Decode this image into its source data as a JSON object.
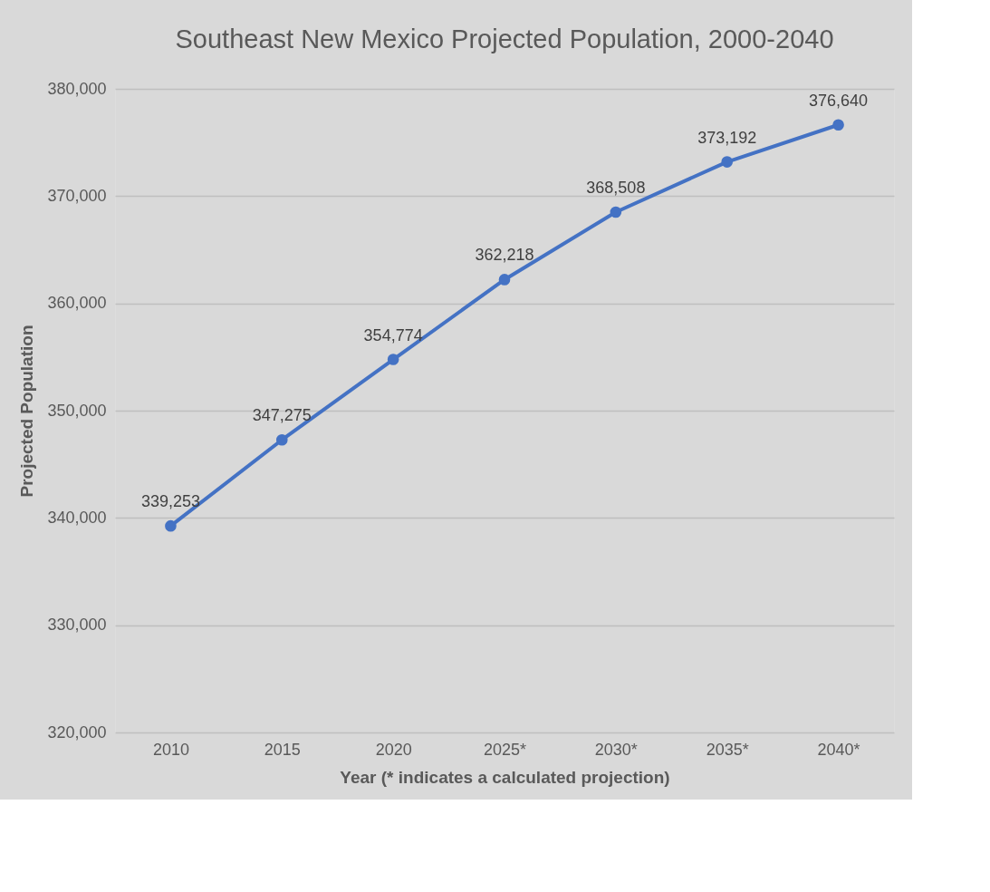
{
  "chart_data": {
    "type": "line",
    "title": "Southeast New Mexico Projected Population, 2000-2040",
    "xlabel": "Year (* indicates a calculated projection)",
    "ylabel": "Projected Population",
    "categories": [
      "2010",
      "2015",
      "2020",
      "2025*",
      "2030*",
      "2035*",
      "2040*"
    ],
    "series": [
      {
        "color": "#4472c4",
        "values": [
          339253,
          347275,
          354774,
          362218,
          368508,
          373192,
          376640
        ],
        "value_labels": [
          "339,253",
          "347,275",
          "354,774",
          "362,218",
          "368,508",
          "373,192",
          "376,640"
        ]
      }
    ],
    "ylim": [
      320000,
      380000
    ],
    "yticks": [
      {
        "value": 320000,
        "label": "320,000"
      },
      {
        "value": 330000,
        "label": "330,000"
      },
      {
        "value": 340000,
        "label": "340,000"
      },
      {
        "value": 350000,
        "label": "350,000"
      },
      {
        "value": 360000,
        "label": "360,000"
      },
      {
        "value": 370000,
        "label": "370,000"
      },
      {
        "value": 380000,
        "label": "380,000"
      }
    ],
    "grid": "y",
    "legend": false,
    "marker": "circle",
    "line_style": "solid"
  }
}
